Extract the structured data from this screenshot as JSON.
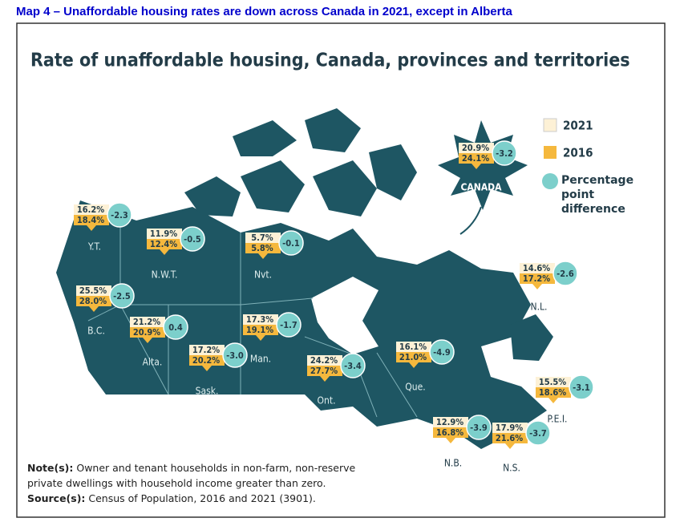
{
  "header": {
    "title": "Map 4 –  Unaffordable housing rates are down across Canada in 2021, except in Alberta"
  },
  "map": {
    "title": "Rate of unaffordable housing, Canada, provinces and territories",
    "legend": {
      "label_2021": "2021",
      "label_2016": "2016",
      "label_difference": "Percentage point difference"
    },
    "canada": {
      "name": "CANADA",
      "rate_2021": "20.9%",
      "rate_2016": "24.1%",
      "difference": "-3.2"
    },
    "regions": [
      {
        "name": "Y.T.",
        "rate_2021": "16.2%",
        "rate_2016": "18.4%",
        "difference": "-2.3"
      },
      {
        "name": "N.W.T.",
        "rate_2021": "11.9%",
        "rate_2016": "12.4%",
        "difference": "-0.5"
      },
      {
        "name": "Nvt.",
        "rate_2021": "5.7%",
        "rate_2016": "5.8%",
        "difference": "-0.1"
      },
      {
        "name": "B.C.",
        "rate_2021": "25.5%",
        "rate_2016": "28.0%",
        "difference": "-2.5"
      },
      {
        "name": "Alta.",
        "rate_2021": "21.2%",
        "rate_2016": "20.9%",
        "difference": "0.4"
      },
      {
        "name": "Sask.",
        "rate_2021": "17.2%",
        "rate_2016": "20.2%",
        "difference": "-3.0"
      },
      {
        "name": "Man.",
        "rate_2021": "17.3%",
        "rate_2016": "19.1%",
        "difference": "-1.7"
      },
      {
        "name": "Ont.",
        "rate_2021": "24.2%",
        "rate_2016": "27.7%",
        "difference": "-3.4"
      },
      {
        "name": "Que.",
        "rate_2021": "16.1%",
        "rate_2016": "21.0%",
        "difference": "-4.9"
      },
      {
        "name": "N.L.",
        "rate_2021": "14.6%",
        "rate_2016": "17.2%",
        "difference": "-2.6"
      },
      {
        "name": "N.B.",
        "rate_2021": "12.9%",
        "rate_2016": "16.8%",
        "difference": "-3.9"
      },
      {
        "name": "N.S.",
        "rate_2021": "17.9%",
        "rate_2016": "21.6%",
        "difference": "-3.7"
      },
      {
        "name": "P.E.I.",
        "rate_2021": "15.5%",
        "rate_2016": "18.6%",
        "difference": "-3.1"
      }
    ]
  },
  "notes": {
    "note_label": "Note(s):",
    "note_text": "Owner and tenant households in non-farm, non-reserve private dwellings with household income greater than zero.",
    "source_label": "Source(s):",
    "source_text": "Census of Population, 2016 and 2021 (3901)."
  }
}
